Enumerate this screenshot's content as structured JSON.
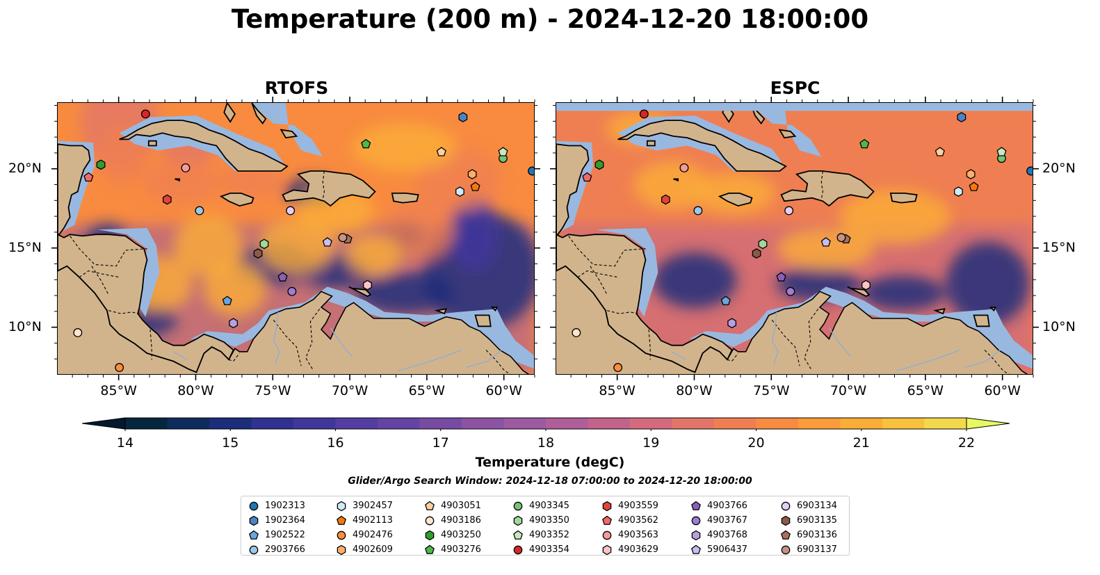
{
  "title": "Temperature (200 m) - 2024-12-20 18:00:00",
  "panels": [
    {
      "id": "left",
      "title": "RTOFS"
    },
    {
      "id": "right",
      "title": "ESPC"
    }
  ],
  "axes": {
    "lon_ticks": [
      "85°W",
      "80°W",
      "75°W",
      "70°W",
      "65°W",
      "60°W"
    ],
    "lat_ticks": [
      "20°N",
      "15°N",
      "10°N"
    ],
    "lon_range": [
      -89,
      -58
    ],
    "lat_range": [
      7,
      24.2
    ]
  },
  "colorbar": {
    "label": "Temperature (degC)",
    "min": 14,
    "max": 22,
    "ticks": [
      "14",
      "15",
      "16",
      "17",
      "18",
      "19",
      "20",
      "21",
      "22"
    ],
    "extend": "both",
    "colors": [
      "#05263e",
      "#0d2c5d",
      "#1c2d7b",
      "#2f3290",
      "#40379d",
      "#533da2",
      "#6543a4",
      "#784ba3",
      "#8b53a2",
      "#9d5aa0",
      "#b05e99",
      "#c2638c",
      "#d36b7d",
      "#e27568",
      "#ef7f52",
      "#f88b40",
      "#fb9b39",
      "#fbad38",
      "#f8c23d",
      "#f3d84e"
    ],
    "under_color": "#04192c",
    "over_color": "#e8f862"
  },
  "search_window": "Glider/Argo Search Window: 2024-12-18 07:00:00 to 2024-12-20 18:00:00",
  "map_colors": {
    "land": "#d2b48c",
    "shelf": "#99b8e0",
    "deep": "#05263e"
  },
  "floats": [
    {
      "id": "1902313",
      "marker": "circle",
      "color": "#1f77b4",
      "lon": -58.2,
      "lat": 19.9
    },
    {
      "id": "1902364",
      "marker": "hexagon",
      "color": "#4a84c4",
      "lon": -62.7,
      "lat": 23.3
    },
    {
      "id": "1902522",
      "marker": "pentagon",
      "color": "#6aa5dc",
      "lon": -78.0,
      "lat": 11.7
    },
    {
      "id": "2903766",
      "marker": "circle",
      "color": "#9ac8ea",
      "lon": -79.8,
      "lat": 17.4
    },
    {
      "id": "3902457",
      "marker": "hexagon",
      "color": "#cfe9f7",
      "lon": -62.9,
      "lat": 18.6
    },
    {
      "id": "4902113",
      "marker": "pentagon",
      "color": "#f5780f",
      "lon": -61.9,
      "lat": 18.9
    },
    {
      "id": "4902476",
      "marker": "circle",
      "color": "#fd8d3c",
      "lon": -85.0,
      "lat": 7.5
    },
    {
      "id": "4902609",
      "marker": "hexagon",
      "color": "#fdae6b",
      "lon": -62.1,
      "lat": 19.7
    },
    {
      "id": "4903051",
      "marker": "pentagon",
      "color": "#fdd0a2",
      "lon": -64.1,
      "lat": 21.1
    },
    {
      "id": "4903186",
      "marker": "circle",
      "color": "#fee6ce",
      "lon": -87.7,
      "lat": 9.7
    },
    {
      "id": "4903250",
      "marker": "hexagon",
      "color": "#2ca02c",
      "lon": -86.2,
      "lat": 20.3
    },
    {
      "id": "4903276",
      "marker": "pentagon",
      "color": "#4fb84b",
      "lon": -69.0,
      "lat": 21.6
    },
    {
      "id": "4903345",
      "marker": "circle",
      "color": "#74c476",
      "lon": -60.1,
      "lat": 20.7
    },
    {
      "id": "4903350",
      "marker": "hexagon",
      "color": "#a1d99b",
      "lon": -75.6,
      "lat": 15.3
    },
    {
      "id": "4903352",
      "marker": "pentagon",
      "color": "#c7e9c0",
      "lon": -60.1,
      "lat": 21.1
    },
    {
      "id": "4903354",
      "marker": "circle",
      "color": "#d62728",
      "lon": -83.3,
      "lat": 23.5
    },
    {
      "id": "4903559",
      "marker": "hexagon",
      "color": "#e0443c",
      "lon": -81.9,
      "lat": 18.1
    },
    {
      "id": "4903562",
      "marker": "pentagon",
      "color": "#f06a6a",
      "lon": -87.0,
      "lat": 19.5
    },
    {
      "id": "4903563",
      "marker": "circle",
      "color": "#f59a9a",
      "lon": -80.7,
      "lat": 20.1
    },
    {
      "id": "4903629",
      "marker": "hexagon",
      "color": "#fcc4c4",
      "lon": -68.9,
      "lat": 12.7
    },
    {
      "id": "4903766",
      "marker": "pentagon",
      "color": "#8a5fb8",
      "lon": -74.4,
      "lat": 13.2
    },
    {
      "id": "4903767",
      "marker": "circle",
      "color": "#a07ed0",
      "lon": -73.8,
      "lat": 12.3
    },
    {
      "id": "4903768",
      "marker": "hexagon",
      "color": "#b6a0de",
      "lon": -77.6,
      "lat": 10.3
    },
    {
      "id": "5906437",
      "marker": "pentagon",
      "color": "#cbbcf0",
      "lon": -71.5,
      "lat": 15.4
    },
    {
      "id": "6903134",
      "marker": "circle",
      "color": "#e4cff4",
      "lon": -73.9,
      "lat": 17.4
    },
    {
      "id": "6903135",
      "marker": "hexagon",
      "color": "#8c5a48",
      "lon": -76.0,
      "lat": 14.7
    },
    {
      "id": "6903136",
      "marker": "pentagon",
      "color": "#a8715e",
      "lon": -70.2,
      "lat": 15.6
    },
    {
      "id": "6903137",
      "marker": "circle",
      "color": "#c79384",
      "lon": -70.5,
      "lat": 15.7
    }
  ]
}
